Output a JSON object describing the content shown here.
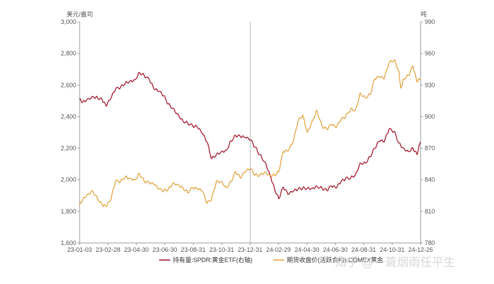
{
  "chart_data": {
    "type": "line",
    "left_axis": {
      "unit": "美元/盎司",
      "ticks": [
        1600,
        1800,
        2000,
        2200,
        2400,
        2600,
        2800,
        3000
      ],
      "tick_labels": [
        "1,600",
        "1,800",
        "2,000",
        "2,200",
        "2,400",
        "2,600",
        "2,800",
        "3,000"
      ],
      "range": [
        1600,
        3000
      ]
    },
    "right_axis": {
      "unit": "吨",
      "ticks": [
        780,
        810,
        840,
        870,
        900,
        930,
        960,
        990
      ],
      "tick_labels": [
        "780",
        "810",
        "840",
        "870",
        "900",
        "930",
        "960",
        "990"
      ],
      "range": [
        780,
        990
      ]
    },
    "x_axis": {
      "ticks": [
        "23-01-03",
        "23-02-28",
        "23-04-30",
        "23-06-30",
        "23-08-31",
        "23-10-31",
        "23-12-31",
        "24-02-29",
        "24-04-30",
        "24-06-30",
        "24-08-31",
        "24-10-31",
        "24-12-26"
      ]
    },
    "x_range": [
      "2023-01-03",
      "2024-12-26"
    ],
    "reference_line_x": "2023-12-31",
    "grid": false,
    "series": [
      {
        "name": "持有量:SPDR:黄金ETF(右轴)",
        "axis": "right",
        "color": "#a3182c",
        "points": [
          [
            "2023-01-03",
            916
          ],
          [
            "2023-01-10",
            914
          ],
          [
            "2023-01-20",
            917
          ],
          [
            "2023-02-01",
            919
          ],
          [
            "2023-02-10",
            918
          ],
          [
            "2023-02-20",
            916
          ],
          [
            "2023-02-28",
            910
          ],
          [
            "2023-03-10",
            917
          ],
          [
            "2023-03-20",
            926
          ],
          [
            "2023-03-31",
            928
          ],
          [
            "2023-04-10",
            932
          ],
          [
            "2023-04-20",
            934
          ],
          [
            "2023-04-30",
            935
          ],
          [
            "2023-05-10",
            942
          ],
          [
            "2023-05-20",
            939
          ],
          [
            "2023-05-31",
            935
          ],
          [
            "2023-06-10",
            926
          ],
          [
            "2023-06-20",
            924
          ],
          [
            "2023-06-30",
            920
          ],
          [
            "2023-07-10",
            912
          ],
          [
            "2023-07-20",
            908
          ],
          [
            "2023-07-31",
            902
          ],
          [
            "2023-08-10",
            896
          ],
          [
            "2023-08-20",
            894
          ],
          [
            "2023-08-31",
            891
          ],
          [
            "2023-09-10",
            890
          ],
          [
            "2023-09-20",
            884
          ],
          [
            "2023-09-30",
            876
          ],
          [
            "2023-10-10",
            860
          ],
          [
            "2023-10-20",
            864
          ],
          [
            "2023-10-31",
            867
          ],
          [
            "2023-11-10",
            868
          ],
          [
            "2023-11-20",
            877
          ],
          [
            "2023-11-30",
            882
          ],
          [
            "2023-12-10",
            881
          ],
          [
            "2023-12-20",
            880
          ],
          [
            "2023-12-31",
            878
          ],
          [
            "2024-01-10",
            871
          ],
          [
            "2024-01-20",
            864
          ],
          [
            "2024-01-31",
            857
          ],
          [
            "2024-02-10",
            846
          ],
          [
            "2024-02-20",
            832
          ],
          [
            "2024-02-29",
            822
          ],
          [
            "2024-03-10",
            833
          ],
          [
            "2024-03-20",
            826
          ],
          [
            "2024-03-31",
            829
          ],
          [
            "2024-04-10",
            831
          ],
          [
            "2024-04-20",
            832
          ],
          [
            "2024-04-30",
            832
          ],
          [
            "2024-05-10",
            832
          ],
          [
            "2024-05-20",
            834
          ],
          [
            "2024-05-31",
            832
          ],
          [
            "2024-06-10",
            830
          ],
          [
            "2024-06-20",
            834
          ],
          [
            "2024-06-30",
            832
          ],
          [
            "2024-07-10",
            838
          ],
          [
            "2024-07-20",
            841
          ],
          [
            "2024-07-31",
            842
          ],
          [
            "2024-08-10",
            845
          ],
          [
            "2024-08-20",
            856
          ],
          [
            "2024-08-31",
            856
          ],
          [
            "2024-09-10",
            862
          ],
          [
            "2024-09-20",
            870
          ],
          [
            "2024-09-30",
            877
          ],
          [
            "2024-10-10",
            876
          ],
          [
            "2024-10-20",
            888
          ],
          [
            "2024-10-31",
            886
          ],
          [
            "2024-11-10",
            875
          ],
          [
            "2024-11-20",
            870
          ],
          [
            "2024-11-30",
            867
          ],
          [
            "2024-12-10",
            870
          ],
          [
            "2024-12-18",
            864
          ],
          [
            "2024-12-26",
            876
          ]
        ]
      },
      {
        "name": "期货收盘价(活跃合约):COMEX黄金",
        "axis": "left",
        "color": "#e2a440",
        "points": [
          [
            "2023-01-03",
            1840
          ],
          [
            "2023-01-10",
            1880
          ],
          [
            "2023-01-20",
            1910
          ],
          [
            "2023-01-31",
            1930
          ],
          [
            "2023-02-10",
            1880
          ],
          [
            "2023-02-20",
            1840
          ],
          [
            "2023-02-28",
            1830
          ],
          [
            "2023-03-10",
            1870
          ],
          [
            "2023-03-20",
            1990
          ],
          [
            "2023-03-31",
            1990
          ],
          [
            "2023-04-10",
            2020
          ],
          [
            "2023-04-20",
            2010
          ],
          [
            "2023-04-30",
            2000
          ],
          [
            "2023-05-10",
            2040
          ],
          [
            "2023-05-20",
            1990
          ],
          [
            "2023-05-31",
            1980
          ],
          [
            "2023-06-10",
            1970
          ],
          [
            "2023-06-20",
            1940
          ],
          [
            "2023-06-30",
            1930
          ],
          [
            "2023-07-10",
            1940
          ],
          [
            "2023-07-20",
            1980
          ],
          [
            "2023-07-31",
            1970
          ],
          [
            "2023-08-10",
            1950
          ],
          [
            "2023-08-20",
            1920
          ],
          [
            "2023-08-31",
            1950
          ],
          [
            "2023-09-10",
            1940
          ],
          [
            "2023-09-20",
            1930
          ],
          [
            "2023-09-30",
            1850
          ],
          [
            "2023-10-10",
            1880
          ],
          [
            "2023-10-20",
            1990
          ],
          [
            "2023-10-31",
            1990
          ],
          [
            "2023-11-10",
            1950
          ],
          [
            "2023-11-20",
            1990
          ],
          [
            "2023-11-30",
            2050
          ],
          [
            "2023-12-10",
            2010
          ],
          [
            "2023-12-20",
            2050
          ],
          [
            "2023-12-31",
            2070
          ],
          [
            "2024-01-10",
            2030
          ],
          [
            "2024-01-20",
            2030
          ],
          [
            "2024-01-31",
            2050
          ],
          [
            "2024-02-10",
            2030
          ],
          [
            "2024-02-20",
            2030
          ],
          [
            "2024-02-29",
            2050
          ],
          [
            "2024-03-10",
            2180
          ],
          [
            "2024-03-20",
            2180
          ],
          [
            "2024-03-31",
            2240
          ],
          [
            "2024-04-10",
            2370
          ],
          [
            "2024-04-20",
            2410
          ],
          [
            "2024-04-30",
            2300
          ],
          [
            "2024-05-10",
            2370
          ],
          [
            "2024-05-20",
            2440
          ],
          [
            "2024-05-31",
            2340
          ],
          [
            "2024-06-10",
            2320
          ],
          [
            "2024-06-20",
            2350
          ],
          [
            "2024-06-30",
            2330
          ],
          [
            "2024-07-10",
            2380
          ],
          [
            "2024-07-20",
            2400
          ],
          [
            "2024-07-31",
            2450
          ],
          [
            "2024-08-10",
            2440
          ],
          [
            "2024-08-20",
            2550
          ],
          [
            "2024-08-31",
            2520
          ],
          [
            "2024-09-10",
            2540
          ],
          [
            "2024-09-20",
            2640
          ],
          [
            "2024-09-30",
            2650
          ],
          [
            "2024-10-10",
            2640
          ],
          [
            "2024-10-20",
            2740
          ],
          [
            "2024-10-31",
            2760
          ],
          [
            "2024-11-10",
            2690
          ],
          [
            "2024-11-14",
            2580
          ],
          [
            "2024-11-20",
            2640
          ],
          [
            "2024-11-30",
            2660
          ],
          [
            "2024-12-10",
            2720
          ],
          [
            "2024-12-18",
            2620
          ],
          [
            "2024-12-26",
            2640
          ]
        ]
      }
    ],
    "legend": "bottom"
  },
  "watermark": "知乎 @一蓑烟雨任平生"
}
